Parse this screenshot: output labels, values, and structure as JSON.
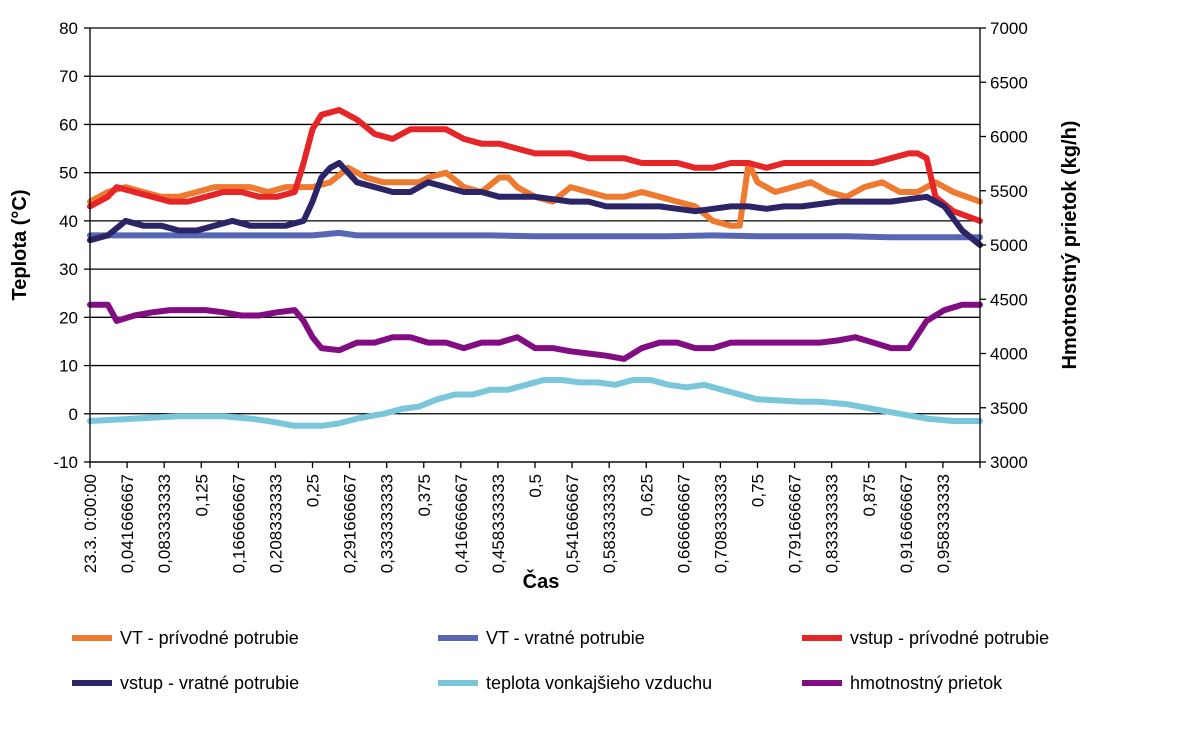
{
  "chart_data": {
    "type": "line",
    "xlabel": "Čas",
    "ylabel_left": "Teplota (°C)",
    "ylabel_right": "Hmotnostný prietok (kg/h)",
    "ylim_left": [
      -10,
      80
    ],
    "ylim_right": [
      3000,
      7000
    ],
    "yticks_left": [
      "-10",
      "0",
      "10",
      "20",
      "30",
      "40",
      "50",
      "60",
      "70",
      "80"
    ],
    "yticks_right": [
      "3000",
      "3500",
      "4000",
      "4500",
      "5000",
      "5500",
      "6000",
      "6500",
      "7000"
    ],
    "xlim": [
      0,
      1
    ],
    "xtick_values": [
      0,
      0.0416666667,
      0.0833333333,
      0.125,
      0.1666666667,
      0.2083333333,
      0.25,
      0.2916666667,
      0.3333333333,
      0.375,
      0.4166666667,
      0.4583333333,
      0.5,
      0.5416666667,
      0.5833333333,
      0.625,
      0.6666666667,
      0.7083333333,
      0.75,
      0.7916666667,
      0.8333333333,
      0.875,
      0.9166666667,
      0.9583333333
    ],
    "xtick_labels": [
      "23.3. 0:00:00",
      "0,041666667",
      "0,083333333",
      "0,125",
      "0,166666667",
      "0,208333333",
      "0,25",
      "0,291666667",
      "0,333333333",
      "0,375",
      "0,416666667",
      "0,458333333",
      "0,5",
      "0,541666667",
      "0,583333333",
      "0,625",
      "0,666666667",
      "0,708333333",
      "0,75",
      "0,791666667",
      "0,833333333",
      "0,875",
      "0,916666667",
      "0,958333333"
    ],
    "grid": "horizontal",
    "legend_position": "bottom",
    "series": [
      {
        "name": "VT - prívodné potrubie",
        "color": "#ee7a30",
        "axis": "left",
        "x": [
          0,
          0.02,
          0.04,
          0.06,
          0.08,
          0.1,
          0.12,
          0.14,
          0.16,
          0.18,
          0.2,
          0.22,
          0.24,
          0.25,
          0.27,
          0.29,
          0.31,
          0.33,
          0.35,
          0.37,
          0.38,
          0.4,
          0.42,
          0.44,
          0.46,
          0.47,
          0.48,
          0.5,
          0.52,
          0.54,
          0.56,
          0.58,
          0.6,
          0.62,
          0.64,
          0.66,
          0.68,
          0.7,
          0.72,
          0.73,
          0.74,
          0.75,
          0.77,
          0.79,
          0.81,
          0.83,
          0.85,
          0.87,
          0.89,
          0.91,
          0.93,
          0.95,
          0.97,
          1.0
        ],
        "y": [
          44,
          46,
          47,
          46,
          45,
          45,
          46,
          47,
          47,
          47,
          46,
          47,
          47,
          47,
          48,
          51,
          49,
          48,
          48,
          48,
          49,
          50,
          47,
          46,
          49,
          49,
          47,
          45,
          44,
          47,
          46,
          45,
          45,
          46,
          45,
          44,
          43,
          40,
          39,
          39,
          52,
          48,
          46,
          47,
          48,
          46,
          45,
          47,
          48,
          46,
          46,
          48,
          46,
          44
        ]
      },
      {
        "name": "VT - vratné potrubie",
        "color": "#5867b5",
        "axis": "left",
        "x": [
          0,
          0.05,
          0.1,
          0.15,
          0.2,
          0.25,
          0.28,
          0.3,
          0.35,
          0.4,
          0.45,
          0.5,
          0.55,
          0.6,
          0.65,
          0.7,
          0.75,
          0.8,
          0.85,
          0.9,
          0.95,
          1.0
        ],
        "y": [
          37,
          37,
          37,
          37,
          37,
          37,
          37.5,
          37,
          37,
          37,
          37,
          36.8,
          36.8,
          36.8,
          36.8,
          37,
          36.8,
          36.8,
          36.8,
          36.6,
          36.6,
          36.6
        ]
      },
      {
        "name": "vstup - prívodné potrubie",
        "color": "#e52528",
        "axis": "left",
        "x": [
          0,
          0.02,
          0.03,
          0.05,
          0.07,
          0.09,
          0.11,
          0.13,
          0.15,
          0.17,
          0.19,
          0.21,
          0.23,
          0.24,
          0.25,
          0.26,
          0.28,
          0.3,
          0.32,
          0.34,
          0.36,
          0.38,
          0.4,
          0.42,
          0.44,
          0.46,
          0.48,
          0.5,
          0.52,
          0.54,
          0.56,
          0.58,
          0.6,
          0.62,
          0.64,
          0.66,
          0.68,
          0.7,
          0.72,
          0.74,
          0.76,
          0.78,
          0.8,
          0.82,
          0.84,
          0.86,
          0.88,
          0.9,
          0.92,
          0.93,
          0.94,
          0.95,
          0.97,
          1.0
        ],
        "y": [
          43,
          45,
          47,
          46,
          45,
          44,
          44,
          45,
          46,
          46,
          45,
          45,
          46,
          52,
          59,
          62,
          63,
          61,
          58,
          57,
          59,
          59,
          59,
          57,
          56,
          56,
          55,
          54,
          54,
          54,
          53,
          53,
          53,
          52,
          52,
          52,
          51,
          51,
          52,
          52,
          51,
          52,
          52,
          52,
          52,
          52,
          52,
          53,
          54,
          54,
          53,
          45,
          42,
          40
        ]
      },
      {
        "name": "vstup - vratné potrubie",
        "color": "#2b2466",
        "axis": "left",
        "x": [
          0,
          0.02,
          0.04,
          0.06,
          0.08,
          0.1,
          0.12,
          0.14,
          0.16,
          0.18,
          0.2,
          0.22,
          0.24,
          0.25,
          0.26,
          0.27,
          0.28,
          0.29,
          0.3,
          0.32,
          0.34,
          0.36,
          0.38,
          0.4,
          0.42,
          0.44,
          0.46,
          0.48,
          0.5,
          0.52,
          0.54,
          0.56,
          0.58,
          0.6,
          0.62,
          0.64,
          0.66,
          0.68,
          0.7,
          0.72,
          0.74,
          0.76,
          0.78,
          0.8,
          0.82,
          0.84,
          0.86,
          0.88,
          0.9,
          0.92,
          0.94,
          0.96,
          0.98,
          1.0
        ],
        "y": [
          36,
          37,
          40,
          39,
          39,
          38,
          38,
          39,
          40,
          39,
          39,
          39,
          40,
          44,
          49,
          51,
          52,
          50,
          48,
          47,
          46,
          46,
          48,
          47,
          46,
          46,
          45,
          45,
          45,
          44.5,
          44,
          44,
          43,
          43,
          43,
          43,
          42.5,
          42,
          42.5,
          43,
          43,
          42.5,
          43,
          43,
          43.5,
          44,
          44,
          44,
          44,
          44.5,
          45,
          43,
          38,
          35
        ]
      },
      {
        "name": "teplota vonkajšieho vzduchu",
        "color": "#7ac6db",
        "axis": "left",
        "x": [
          0,
          0.05,
          0.1,
          0.15,
          0.18,
          0.2,
          0.23,
          0.26,
          0.28,
          0.3,
          0.33,
          0.35,
          0.37,
          0.39,
          0.41,
          0.43,
          0.45,
          0.47,
          0.49,
          0.51,
          0.53,
          0.55,
          0.57,
          0.59,
          0.61,
          0.63,
          0.65,
          0.67,
          0.69,
          0.71,
          0.73,
          0.75,
          0.8,
          0.82,
          0.85,
          0.88,
          0.91,
          0.94,
          0.97,
          1.0
        ],
        "y": [
          -1.5,
          -1,
          -0.5,
          -0.5,
          -1,
          -1.5,
          -2.5,
          -2.5,
          -2,
          -1,
          0,
          1,
          1.5,
          3,
          4,
          4,
          5,
          5,
          6,
          7,
          7,
          6.5,
          6.5,
          6,
          7,
          7,
          6,
          5.5,
          6,
          5,
          4,
          3,
          2.5,
          2.5,
          2,
          1,
          0,
          -1,
          -1.5,
          -1.5
        ]
      },
      {
        "name": "hmotnostný prietok",
        "color": "#820c82",
        "axis": "right",
        "x": [
          0,
          0.01,
          0.02,
          0.03,
          0.05,
          0.07,
          0.09,
          0.11,
          0.13,
          0.15,
          0.17,
          0.19,
          0.21,
          0.23,
          0.24,
          0.25,
          0.26,
          0.28,
          0.3,
          0.32,
          0.34,
          0.36,
          0.38,
          0.4,
          0.42,
          0.44,
          0.46,
          0.48,
          0.5,
          0.52,
          0.54,
          0.56,
          0.58,
          0.6,
          0.62,
          0.64,
          0.66,
          0.68,
          0.7,
          0.72,
          0.74,
          0.76,
          0.78,
          0.8,
          0.82,
          0.84,
          0.86,
          0.88,
          0.9,
          0.92,
          0.94,
          0.96,
          0.98,
          1.0
        ],
        "y": [
          4450,
          4450,
          4450,
          4300,
          4350,
          4380,
          4400,
          4400,
          4400,
          4380,
          4350,
          4350,
          4380,
          4400,
          4300,
          4150,
          4050,
          4030,
          4100,
          4100,
          4150,
          4150,
          4100,
          4100,
          4050,
          4100,
          4100,
          4150,
          4050,
          4050,
          4020,
          4000,
          3980,
          3950,
          4050,
          4100,
          4100,
          4050,
          4050,
          4100,
          4100,
          4100,
          4100,
          4100,
          4100,
          4120,
          4150,
          4100,
          4050,
          4050,
          4300,
          4400,
          4450,
          4450
        ]
      }
    ]
  }
}
